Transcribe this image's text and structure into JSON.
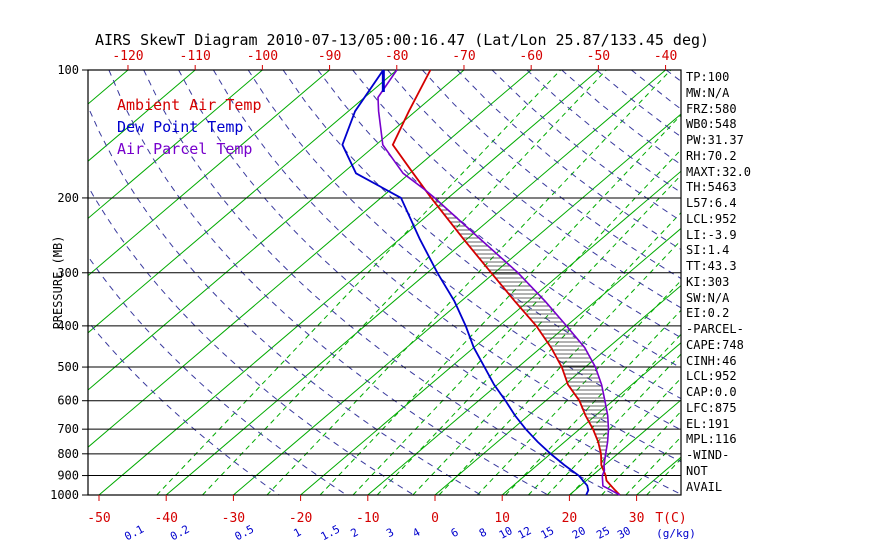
{
  "title": "AIRS SkewT Diagram 2010-07-13/05:00:16.47 (Lat/Lon 25.87/133.45 deg)",
  "stats_panel": {
    "lines": [
      "TP:100",
      "MW:N/A",
      "FRZ:580",
      "WB0:548",
      "PW:31.37",
      "RH:70.2",
      "MAXT:32.0",
      "TH:5463",
      "L57:6.4",
      "LCL:952",
      "LI:-3.9",
      "SI:1.4",
      "TT:43.3",
      "KI:303",
      "SW:N/A",
      "EI:0.2",
      "-PARCEL-",
      "CAPE:748",
      "CINH:46",
      "LCL:952",
      "CAP:0.0",
      "LFC:875",
      "EL:191",
      "MPL:116",
      "-WIND-",
      "NOT",
      "AVAIL"
    ]
  },
  "chart_data": {
    "type": "line",
    "subtype": "skewt_logp",
    "title": "AIRS SkewT Diagram 2010-07-13/05:00:16.47 (Lat/Lon 25.87/133.45 deg)",
    "y_axis": {
      "label": "PRESSURE (MB)",
      "scale": "log",
      "range_mb": [
        100,
        1000
      ],
      "ticks_mb": [
        100,
        200,
        300,
        400,
        500,
        600,
        700,
        800,
        900,
        1000
      ]
    },
    "x_axis": {
      "label": "T(C)",
      "top_labels_degC": [
        -120,
        -110,
        -100,
        -90,
        -80,
        -70,
        -60,
        -50,
        -40
      ],
      "bottom_labels_degC": [
        -50,
        -40,
        -30,
        -20,
        -10,
        0,
        10,
        20,
        30
      ]
    },
    "mixing_ratio": {
      "label": "(g/kg)",
      "values_gkg": [
        0.1,
        0.2,
        0.5,
        1,
        1.5,
        2,
        3,
        4,
        6,
        8,
        10,
        12,
        15,
        20,
        25,
        30
      ],
      "dewpoint_at_1000mb_degC": [
        -41.4,
        -34.6,
        -25.0,
        -17.1,
        -12.2,
        -8.6,
        -3.3,
        0.6,
        6.3,
        10.5,
        13.9,
        16.7,
        20.1,
        24.8,
        28.4,
        31.5
      ]
    },
    "isotherms_degC": {
      "min": -140,
      "max": 40,
      "step": 10
    },
    "dry_adiabats_K": {
      "min": 250,
      "max": 450,
      "step": 10
    },
    "colors": {
      "isotherm": "#00aa00",
      "mixing": "#00aa00",
      "adiabat": "#3a3a9e",
      "ambient": "#d40000",
      "dewpoint": "#0000cd",
      "parcel": "#7700cc",
      "axis": "#000000",
      "top_labels": "#d40000",
      "bottom_temp_labels": "#d40000",
      "mixing_labels": "#0000cd",
      "hatch": "#333333"
    },
    "series": [
      {
        "name": "Ambient Air Temp",
        "color": "#d40000",
        "pressure_mb": [
          100,
          125,
          150,
          175,
          200,
          250,
          300,
          350,
          400,
          450,
          500,
          550,
          600,
          650,
          700,
          750,
          800,
          850,
          900,
          925,
          950,
          975,
          1000
        ],
        "temp_degC": [
          -75,
          -71,
          -67.5,
          -59.5,
          -52.5,
          -40.5,
          -30.5,
          -22,
          -14.5,
          -8.5,
          -3.5,
          0.5,
          5,
          8.5,
          12,
          15,
          17.5,
          19.5,
          22,
          23,
          24.5,
          26,
          27.5
        ]
      },
      {
        "name": "Dew Point Temp",
        "color": "#0000cd",
        "pressure_mb": [
          100,
          125,
          150,
          175,
          200,
          250,
          300,
          350,
          400,
          450,
          500,
          550,
          600,
          650,
          700,
          750,
          800,
          850,
          900,
          925,
          950,
          975,
          1000
        ],
        "temp_degC": [
          -82,
          -79,
          -75,
          -68,
          -57,
          -47,
          -38.5,
          -31,
          -25,
          -20,
          -15,
          -10.5,
          -6,
          -2,
          2,
          6,
          10,
          14,
          18,
          19.5,
          21,
          22,
          22.5
        ]
      },
      {
        "name": "Air Parcel Temp",
        "color": "#7700cc",
        "pressure_mb": [
          100,
          116,
          125,
          150,
          175,
          191,
          200,
          250,
          300,
          350,
          400,
          450,
          500,
          550,
          600,
          650,
          700,
          750,
          800,
          850,
          875,
          900,
          952,
          975,
          1000
        ],
        "temp_degC": [
          -80,
          -78,
          -75.5,
          -69,
          -61,
          -55,
          -52,
          -38,
          -26.5,
          -17.5,
          -10,
          -3.5,
          1.5,
          5.5,
          8.8,
          11.8,
          14.3,
          16.4,
          18.2,
          19.9,
          20.9,
          21.5,
          23.4,
          25.4,
          27.5
        ]
      }
    ],
    "indices": {
      "cape_hatch_from_mb": 875,
      "cape_hatch_to_mb": 191
    },
    "tropopause_marker": {
      "pressure_mb": 100,
      "temp_degC": -82
    }
  }
}
